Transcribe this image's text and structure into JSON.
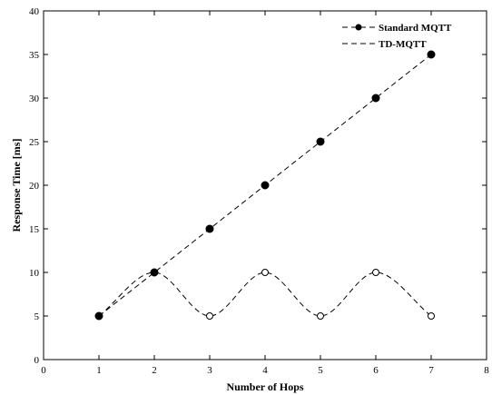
{
  "chart_data": {
    "type": "line",
    "title": "",
    "xlabel": "Number of Hops",
    "ylabel": "Response Time [ms]",
    "xlim": [
      0,
      8
    ],
    "ylim": [
      0,
      40
    ],
    "xticks": [
      0,
      1,
      2,
      3,
      4,
      5,
      6,
      7,
      8
    ],
    "yticks": [
      0,
      5,
      10,
      15,
      20,
      25,
      30,
      35,
      40
    ],
    "grid": false,
    "legend_position": "top-right",
    "series": [
      {
        "name": "Standard MQTT",
        "x": [
          1,
          2,
          3,
          4,
          5,
          6,
          7
        ],
        "values": [
          5,
          10,
          15,
          20,
          25,
          30,
          35
        ],
        "marker": "filled-circle",
        "line": "dashed",
        "color": "#000000"
      },
      {
        "name": "TD-MQTT",
        "x": [
          1,
          2,
          3,
          4,
          5,
          6,
          7
        ],
        "values": [
          5,
          10,
          5,
          10,
          5,
          10,
          5
        ],
        "marker": "open-circle",
        "line": "dashed-smooth",
        "color": "#000000"
      }
    ]
  }
}
